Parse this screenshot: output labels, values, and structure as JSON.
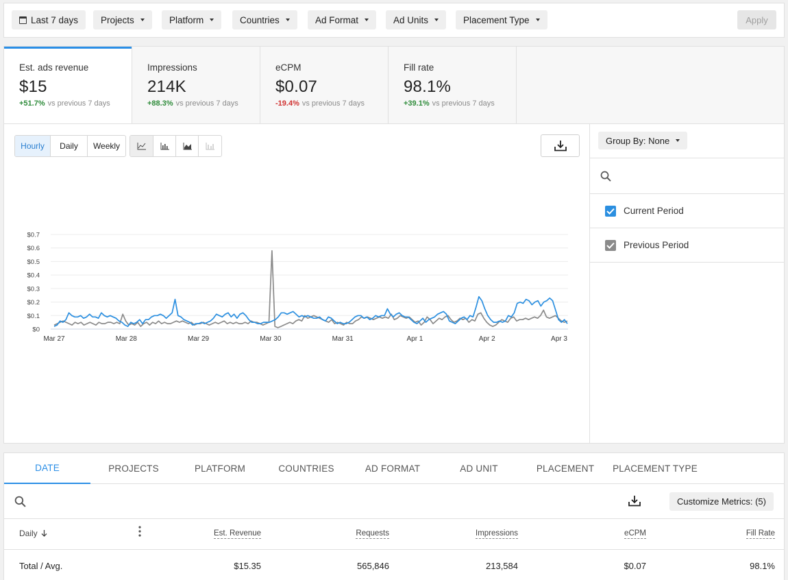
{
  "filters": {
    "date_range": "Last 7 days",
    "items": [
      "Projects",
      "Platform",
      "Countries",
      "Ad Format",
      "Ad Units",
      "Placement Type"
    ],
    "apply_label": "Apply"
  },
  "kpis": [
    {
      "label": "Est. ads revenue",
      "value": "$15",
      "delta": "+51.7%",
      "delta_dir": "up",
      "compare": "vs previous 7 days"
    },
    {
      "label": "Impressions",
      "value": "214K",
      "delta": "+88.3%",
      "delta_dir": "up",
      "compare": "vs previous 7 days"
    },
    {
      "label": "eCPM",
      "value": "$0.07",
      "delta": "-19.4%",
      "delta_dir": "down",
      "compare": "vs previous 7 days"
    },
    {
      "label": "Fill rate",
      "value": "98.1%",
      "delta": "+39.1%",
      "delta_dir": "up",
      "compare": "vs previous 7 days"
    }
  ],
  "granularity": {
    "options": [
      "Hourly",
      "Daily",
      "Weekly"
    ],
    "selected": "Hourly"
  },
  "chart_types": [
    "line-chart-icon",
    "bar-chart-icon",
    "area-chart-icon",
    "stacked-bar-chart-icon"
  ],
  "side_panel": {
    "group_by_label": "Group By: None",
    "legend": [
      {
        "label": "Current Period",
        "checked": true,
        "color": "#2b8fe0"
      },
      {
        "label": "Previous Period",
        "checked": true,
        "color": "#8a8a8a"
      }
    ]
  },
  "chart_data": {
    "type": "line",
    "x_labels": [
      "Mar 27",
      "Mar 28",
      "Mar 29",
      "Mar 30",
      "Mar 31",
      "Apr 1",
      "Apr 2",
      "Apr 3"
    ],
    "y_ticks": [
      "$0",
      "$0.1",
      "$0.2",
      "$0.3",
      "$0.4",
      "$0.5",
      "$0.6",
      "$0.7"
    ],
    "ylim": [
      0,
      0.7
    ],
    "grid": true,
    "series": [
      {
        "name": "Current Period",
        "color": "#2b8fe0",
        "values": [
          0.02,
          0.03,
          0.06,
          0.05,
          0.07,
          0.12,
          0.1,
          0.09,
          0.09,
          0.1,
          0.08,
          0.09,
          0.11,
          0.09,
          0.09,
          0.08,
          0.12,
          0.1,
          0.09,
          0.1,
          0.09,
          0.08,
          0.06,
          0.05,
          0.03,
          0.02,
          0.05,
          0.04,
          0.05,
          0.07,
          0.04,
          0.07,
          0.07,
          0.09,
          0.1,
          0.1,
          0.11,
          0.1,
          0.08,
          0.1,
          0.12,
          0.22,
          0.1,
          0.09,
          0.07,
          0.06,
          0.05,
          0.03,
          0.04,
          0.04,
          0.05,
          0.04,
          0.05,
          0.06,
          0.08,
          0.11,
          0.1,
          0.09,
          0.11,
          0.12,
          0.09,
          0.11,
          0.08,
          0.11,
          0.12,
          0.1,
          0.07,
          0.05,
          0.05,
          0.04,
          0.04,
          0.05,
          0.05,
          0.05,
          0.06,
          0.07,
          0.09,
          0.12,
          0.12,
          0.11,
          0.12,
          0.13,
          0.11,
          0.09,
          0.1,
          0.09,
          0.1,
          0.09,
          0.08,
          0.08,
          0.09,
          0.07,
          0.06,
          0.09,
          0.08,
          0.06,
          0.04,
          0.05,
          0.04,
          0.04,
          0.05,
          0.07,
          0.09,
          0.1,
          0.1,
          0.08,
          0.09,
          0.07,
          0.08,
          0.1,
          0.09,
          0.1,
          0.1,
          0.15,
          0.11,
          0.09,
          0.11,
          0.12,
          0.1,
          0.09,
          0.09,
          0.07,
          0.05,
          0.04,
          0.06,
          0.08,
          0.05,
          0.07,
          0.08,
          0.09,
          0.11,
          0.12,
          0.13,
          0.11,
          0.06,
          0.05,
          0.04,
          0.06,
          0.08,
          0.09,
          0.07,
          0.1,
          0.09,
          0.16,
          0.24,
          0.21,
          0.15,
          0.1,
          0.07,
          0.05,
          0.05,
          0.06,
          0.05,
          0.06,
          0.1,
          0.09,
          0.12,
          0.19,
          0.2,
          0.19,
          0.22,
          0.21,
          0.18,
          0.2,
          0.21,
          0.17,
          0.2,
          0.21,
          0.23,
          0.21,
          0.14,
          0.07,
          0.05,
          0.07,
          0.04
        ]
      },
      {
        "name": "Previous Period",
        "color": "#8a8a8a",
        "values": [
          0.03,
          0.04,
          0.05,
          0.06,
          0.05,
          0.04,
          0.03,
          0.05,
          0.04,
          0.05,
          0.03,
          0.04,
          0.05,
          0.04,
          0.03,
          0.05,
          0.04,
          0.04,
          0.05,
          0.05,
          0.04,
          0.05,
          0.04,
          0.11,
          0.06,
          0.03,
          0.04,
          0.03,
          0.05,
          0.02,
          0.04,
          0.05,
          0.03,
          0.05,
          0.04,
          0.06,
          0.04,
          0.05,
          0.04,
          0.04,
          0.05,
          0.06,
          0.05,
          0.06,
          0.05,
          0.04,
          0.05,
          0.03,
          0.04,
          0.04,
          0.05,
          0.04,
          0.03,
          0.04,
          0.05,
          0.04,
          0.05,
          0.06,
          0.04,
          0.05,
          0.04,
          0.05,
          0.04,
          0.04,
          0.05,
          0.04,
          0.06,
          0.05,
          0.05,
          0.04,
          0.03,
          0.04,
          0.05,
          0.58,
          0.02,
          0.01,
          0.02,
          0.03,
          0.04,
          0.05,
          0.04,
          0.06,
          0.07,
          0.06,
          0.1,
          0.08,
          0.09,
          0.1,
          0.09,
          0.08,
          0.07,
          0.06,
          0.05,
          0.07,
          0.04,
          0.05,
          0.04,
          0.03,
          0.05,
          0.04,
          0.04,
          0.06,
          0.07,
          0.09,
          0.08,
          0.09,
          0.08,
          0.07,
          0.08,
          0.09,
          0.08,
          0.09,
          0.08,
          0.11,
          0.07,
          0.08,
          0.1,
          0.09,
          0.08,
          0.09,
          0.07,
          0.05,
          0.06,
          0.03,
          0.05,
          0.09,
          0.07,
          0.04,
          0.06,
          0.08,
          0.07,
          0.09,
          0.1,
          0.07,
          0.05,
          0.06,
          0.08,
          0.07,
          0.08,
          0.05,
          0.07,
          0.06,
          0.11,
          0.12,
          0.08,
          0.05,
          0.03,
          0.02,
          0.03,
          0.05,
          0.07,
          0.06,
          0.05,
          0.08,
          0.09,
          0.06,
          0.07,
          0.07,
          0.08,
          0.07,
          0.08,
          0.09,
          0.08,
          0.1,
          0.14,
          0.09,
          0.08,
          0.09,
          0.1,
          0.08,
          0.06,
          0.05,
          0.06
        ]
      }
    ]
  },
  "table": {
    "tabs": [
      "DATE",
      "PROJECTS",
      "PLATFORM",
      "COUNTRIES",
      "AD FORMAT",
      "AD UNIT",
      "PLACEMENT",
      "PLACEMENT TYPE"
    ],
    "active_tab": "DATE",
    "customize_label": "Customize Metrics: (5)",
    "columns": {
      "date": "Daily",
      "revenue": "Est. Revenue",
      "requests": "Requests",
      "impressions": "Impressions",
      "ecpm": "eCPM",
      "fill_rate": "Fill Rate"
    },
    "total_row": {
      "label": "Total / Avg.",
      "revenue": "$15.35",
      "requests": "565,846",
      "impressions": "213,584",
      "ecpm": "$0.07",
      "fill_rate": "98.1%"
    }
  }
}
